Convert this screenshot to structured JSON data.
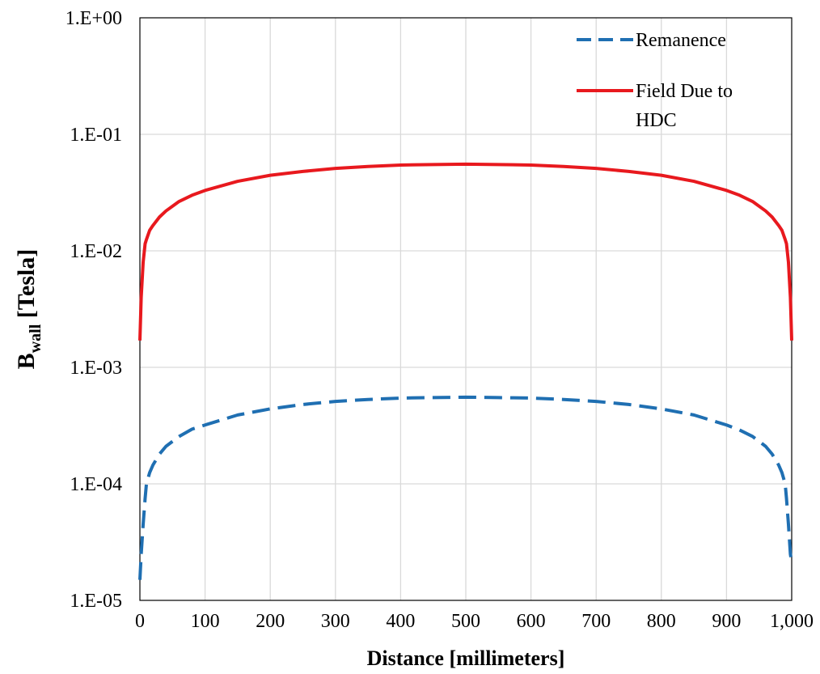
{
  "chart_data": {
    "type": "line",
    "xlabel": "Distance  [millimeters]",
    "ylabel_main": "B",
    "ylabel_sub": "wall",
    "ylabel_rest": " [Tesla]",
    "xlim": [
      0,
      1000
    ],
    "ylim": [
      1e-05,
      1
    ],
    "yscale": "log",
    "grid": true,
    "legend_position": "top-right",
    "x_ticks": [
      "0",
      "100",
      "200",
      "300",
      "400",
      "500",
      "600",
      "700",
      "800",
      "900",
      "1,000"
    ],
    "y_ticks": [
      "1.E-05",
      "1.E-04",
      "1.E-03",
      "1.E-02",
      "1.E-01",
      "1.E+00"
    ],
    "series": [
      {
        "name": "Remanence",
        "color": "#1f6fb2",
        "style": "dashed",
        "x": [
          0,
          2,
          5,
          8,
          10,
          15,
          20,
          30,
          40,
          60,
          80,
          100,
          150,
          200,
          250,
          300,
          350,
          400,
          450,
          500,
          550,
          600,
          650,
          700,
          750,
          800,
          850,
          900,
          920,
          940,
          960,
          970,
          980,
          985,
          990,
          992,
          995,
          998,
          1000
        ],
        "y": [
          1.5e-05,
          2.5e-05,
          4.5e-05,
          7.5e-05,
          0.0001,
          0.000125,
          0.000145,
          0.00018,
          0.00021,
          0.000255,
          0.000295,
          0.00032,
          0.00039,
          0.00044,
          0.00048,
          0.00051,
          0.00053,
          0.000545,
          0.00055,
          0.000555,
          0.00055,
          0.000545,
          0.00053,
          0.00051,
          0.00048,
          0.00044,
          0.00039,
          0.00032,
          0.00029,
          0.000255,
          0.00021,
          0.00018,
          0.000145,
          0.000125,
          0.0001,
          7.5e-05,
          4.5e-05,
          2.5e-05,
          2.1e-05
        ]
      },
      {
        "name": "Field Due to HDC",
        "color": "#e8191e",
        "style": "solid",
        "x": [
          0,
          2,
          5,
          8,
          10,
          15,
          20,
          30,
          40,
          60,
          80,
          100,
          150,
          200,
          250,
          300,
          350,
          400,
          450,
          500,
          550,
          600,
          650,
          700,
          750,
          800,
          850,
          900,
          920,
          940,
          960,
          970,
          980,
          985,
          990,
          992,
          995,
          998,
          1000
        ],
        "y": [
          0.0017,
          0.004,
          0.008,
          0.0115,
          0.0125,
          0.015,
          0.0165,
          0.0195,
          0.022,
          0.0265,
          0.03,
          0.033,
          0.0395,
          0.0445,
          0.048,
          0.051,
          0.053,
          0.0545,
          0.055,
          0.0555,
          0.055,
          0.0545,
          0.053,
          0.051,
          0.048,
          0.0445,
          0.0395,
          0.033,
          0.03,
          0.0265,
          0.022,
          0.0195,
          0.0165,
          0.015,
          0.0125,
          0.0115,
          0.008,
          0.004,
          0.0017
        ]
      }
    ],
    "legend": [
      {
        "label_line1": "Remanence",
        "label_line2": ""
      },
      {
        "label_line1": "Field Due to",
        "label_line2": "HDC"
      }
    ]
  }
}
